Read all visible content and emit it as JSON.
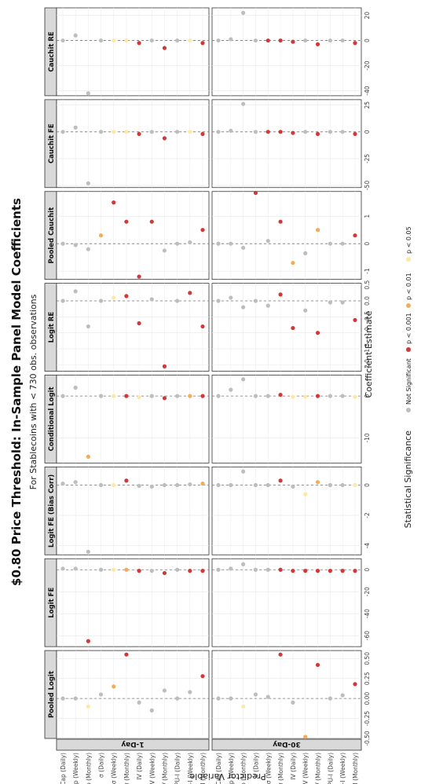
{
  "chart_data": {
    "type": "scatter",
    "title": "$0.80 Price Threshold: In-Sample Panel Model Coefficients",
    "subtitle": "For Stablecoins with < 730 obs. observations",
    "xlabel": "Predictor Variable",
    "ylabel": "Coefficient Estimate",
    "columns": [
      "1-Day",
      "30-Day"
    ],
    "categories": [
      "ΔMCap (Daily)",
      "ΔMCap (Weekly)",
      "ΔMCap (Monthly)",
      "σ (Daily)",
      "σ (Weekly)",
      "σ (Monthly)",
      "IV (Daily)",
      "IV (Weekly)",
      "IV (Monthly)",
      "EPU-I (Daily)",
      "EPU-I (Weekly)",
      "EPU-I (Monthly)"
    ],
    "legend": {
      "title": "Statistical Significance",
      "items": [
        {
          "label": "Not Significant",
          "color": "#bdbdbd"
        },
        {
          "label": "p < 0.001",
          "color": "#d2383a"
        },
        {
          "label": "p < 0.01",
          "color": "#f2ad5b"
        },
        {
          "label": "p < 0.05",
          "color": "#fde9a3"
        }
      ]
    },
    "panels": [
      {
        "model": "Pooled Logit",
        "ylim": [
          -0.5,
          0.6
        ],
        "ticks": [
          -0.5,
          -0.25,
          0,
          0.25,
          0.5
        ],
        "tick_labels": [
          "-0.50",
          "-0.25",
          "0.00",
          "0.25",
          "0.50"
        ],
        "series": [
          {
            "name": "1-Day",
            "values": [
              0.0,
              0.0,
              -0.1,
              0.05,
              0.15,
              0.55,
              -0.05,
              -0.15,
              0.1,
              0.0,
              0.08,
              0.28
            ],
            "sig": [
              "ns",
              "ns",
              "p05",
              "ns",
              "p01",
              "p001",
              "ns",
              "ns",
              "ns",
              "ns",
              "ns",
              "p001"
            ]
          },
          {
            "name": "30-Day",
            "values": [
              0.0,
              0.0,
              -0.1,
              0.05,
              0.02,
              0.55,
              -0.05,
              -0.48,
              0.42,
              0.0,
              0.04,
              0.18
            ],
            "sig": [
              "ns",
              "ns",
              "p05",
              "ns",
              "ns",
              "p001",
              "ns",
              "p01",
              "p001",
              "ns",
              "ns",
              "p001"
            ]
          }
        ]
      },
      {
        "model": "Logit FE",
        "ylim": [
          -70,
          10
        ],
        "ticks": [
          -60,
          -40,
          -20,
          0
        ],
        "tick_labels": [
          "-60",
          "-40",
          "-20",
          "0"
        ],
        "series": [
          {
            "name": "1-Day",
            "values": [
              1,
              1,
              -65,
              0,
              0,
              0,
              -1,
              -1,
              -3,
              0,
              -1,
              -1
            ],
            "sig": [
              "ns",
              "ns",
              "p001",
              "ns",
              "p05",
              "p01",
              "p001",
              "ns",
              "p001",
              "ns",
              "p001",
              "p001"
            ]
          },
          {
            "name": "30-Day",
            "values": [
              0,
              1,
              5,
              0,
              0,
              0,
              -1,
              -1,
              -1,
              -1,
              -1,
              -1
            ],
            "sig": [
              "ns",
              "ns",
              "ns",
              "ns",
              "ns",
              "p001",
              "p001",
              "p001",
              "p001",
              "p001",
              "p001",
              "p001"
            ]
          }
        ]
      },
      {
        "model": "Logit FE (Bias Corr)",
        "ylim": [
          -4.6,
          1.2
        ],
        "ticks": [
          -4,
          -2,
          0
        ],
        "tick_labels": [
          "-4",
          "-2",
          "0"
        ],
        "series": [
          {
            "name": "1-Day",
            "values": [
              0.1,
              0.2,
              -4.4,
              0.0,
              0.0,
              0.3,
              -0.05,
              -0.1,
              0.0,
              0.0,
              0.05,
              0.1
            ],
            "sig": [
              "ns",
              "ns",
              "ns",
              "ns",
              "p05",
              "p001",
              "ns",
              "ns",
              "ns",
              "ns",
              "ns",
              "p01"
            ]
          },
          {
            "name": "30-Day",
            "values": [
              0.0,
              0.0,
              0.9,
              0.0,
              0.0,
              0.3,
              -0.1,
              -0.6,
              0.2,
              0.0,
              0.0,
              0.0
            ],
            "sig": [
              "ns",
              "ns",
              "ns",
              "ns",
              "ns",
              "p001",
              "ns",
              "p05",
              "p01",
              "ns",
              "ns",
              "p05"
            ]
          }
        ]
      },
      {
        "model": "Conditional Logit",
        "ylim": [
          -16,
          5
        ],
        "ticks": [
          -10,
          0
        ],
        "tick_labels": [
          "-10",
          "0"
        ],
        "series": [
          {
            "name": "1-Day",
            "values": [
              0.0,
              2.0,
              -14.5,
              0.0,
              0.0,
              0.0,
              -0.3,
              0.0,
              -0.5,
              0.0,
              0.0,
              0.0
            ],
            "sig": [
              "ns",
              "ns",
              "p01",
              "ns",
              "p05",
              "p001",
              "p05",
              "ns",
              "p001",
              "ns",
              "p01",
              "p001"
            ]
          },
          {
            "name": "30-Day",
            "values": [
              0.0,
              1.5,
              4.0,
              0.0,
              0.0,
              0.3,
              -0.2,
              -0.2,
              0.0,
              0.0,
              0.0,
              -0.2
            ],
            "sig": [
              "ns",
              "ns",
              "ns",
              "ns",
              "ns",
              "p001",
              "p05",
              "p05",
              "p001",
              "ns",
              "ns",
              "p05"
            ]
          }
        ]
      },
      {
        "model": "Logit RE",
        "ylim": [
          -2.2,
          0.55
        ],
        "ticks": [
          -2,
          -1.5,
          -1,
          -0.5,
          0,
          0.5
        ],
        "tick_labels": [
          "-2.0",
          "-1.5",
          "-1.0",
          "-0.5",
          "0.0",
          "0.5"
        ],
        "series": [
          {
            "name": "1-Day",
            "values": [
              0.0,
              0.3,
              -0.8,
              0.0,
              0.1,
              0.15,
              -0.7,
              0.05,
              -2.05,
              0.0,
              0.25,
              -0.8
            ],
            "sig": [
              "ns",
              "ns",
              "ns",
              "ns",
              "p05",
              "p001",
              "p001",
              "ns",
              "p001",
              "ns",
              "p001",
              "p001"
            ]
          },
          {
            "name": "30-Day",
            "values": [
              0.0,
              0.1,
              -0.2,
              0.0,
              -0.15,
              0.2,
              -0.85,
              -0.3,
              -1.0,
              -0.05,
              -0.05,
              -0.6
            ],
            "sig": [
              "ns",
              "ns",
              "ns",
              "ns",
              "ns",
              "p001",
              "p001",
              "ns",
              "p001",
              "ns",
              "ns",
              "p001"
            ]
          }
        ]
      },
      {
        "model": "Pooled Cauchit",
        "ylim": [
          -1.3,
          1.9
        ],
        "ticks": [
          -1,
          0,
          1
        ],
        "tick_labels": [
          "-1",
          "0",
          "1"
        ],
        "series": [
          {
            "name": "1-Day",
            "values": [
              0.0,
              -0.05,
              -0.2,
              0.3,
              1.5,
              0.8,
              -1.2,
              0.8,
              -0.25,
              0.0,
              0.05,
              0.5
            ],
            "sig": [
              "ns",
              "ns",
              "ns",
              "p01",
              "p001",
              "p001",
              "p001",
              "p001",
              "ns",
              "ns",
              "ns",
              "p001"
            ]
          },
          {
            "name": "30-Day",
            "values": [
              0.0,
              0.0,
              -0.15,
              1.85,
              0.1,
              0.8,
              -0.7,
              -0.35,
              0.5,
              0.0,
              0.0,
              0.3
            ],
            "sig": [
              "ns",
              "ns",
              "ns",
              "p001",
              "ns",
              "p001",
              "p01",
              "ns",
              "p01",
              "ns",
              "ns",
              "p001"
            ]
          }
        ]
      },
      {
        "model": "Cauchit FE",
        "ylim": [
          -52,
          30
        ],
        "ticks": [
          -50,
          -25,
          0,
          25
        ],
        "tick_labels": [
          "-50",
          "-25",
          "0",
          "25"
        ],
        "series": [
          {
            "name": "1-Day",
            "values": [
              0,
              4,
              -48,
              0,
              0,
              0,
              -2,
              0,
              -6,
              0,
              0,
              -2
            ],
            "sig": [
              "ns",
              "ns",
              "ns",
              "ns",
              "p05",
              "p05",
              "p001",
              "ns",
              "p001",
              "ns",
              "p05",
              "p001"
            ]
          },
          {
            "name": "30-Day",
            "values": [
              0,
              1,
              26,
              0,
              0,
              0,
              -1,
              0,
              -2,
              0,
              0,
              -2
            ],
            "sig": [
              "ns",
              "ns",
              "ns",
              "ns",
              "p001",
              "p001",
              "p001",
              "ns",
              "p001",
              "ns",
              "ns",
              "p001"
            ]
          }
        ]
      },
      {
        "model": "Cauchit RE",
        "ylim": [
          -44,
          26
        ],
        "ticks": [
          -40,
          -20,
          0,
          20
        ],
        "tick_labels": [
          "-40",
          "-20",
          "0",
          "20"
        ],
        "series": [
          {
            "name": "1-Day",
            "values": [
              0,
              4,
              -42,
              0,
              0,
              0,
              -2,
              0,
              -6,
              0,
              0,
              -2
            ],
            "sig": [
              "ns",
              "ns",
              "ns",
              "ns",
              "p05",
              "p05",
              "p001",
              "ns",
              "p001",
              "ns",
              "p05",
              "p001"
            ]
          },
          {
            "name": "30-Day",
            "values": [
              0,
              1,
              22,
              0,
              0,
              0,
              -1,
              0,
              -3,
              0,
              0,
              -2
            ],
            "sig": [
              "ns",
              "ns",
              "ns",
              "ns",
              "p001",
              "p001",
              "p001",
              "ns",
              "p001",
              "ns",
              "ns",
              "p001"
            ]
          }
        ]
      }
    ]
  }
}
